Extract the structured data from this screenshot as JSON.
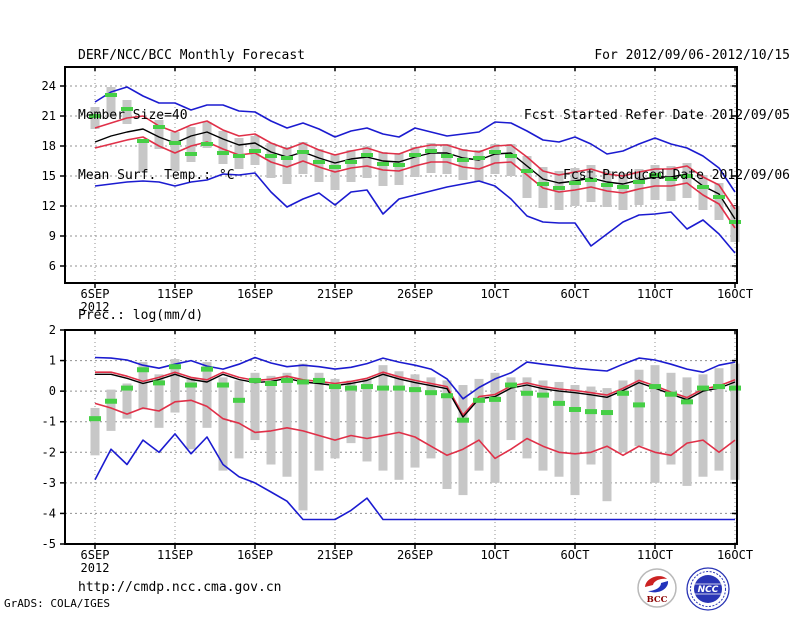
{
  "header": {
    "title": "DERF/NCC/BCC Monthly Forecast",
    "member_size": "Member Size=40",
    "valid_range": "For 2012/09/06-2012/10/15",
    "refer_date": "Fcst Started Refer Date 2012/09/05",
    "produced_date": "Fcst Produced Date 2012/09/06"
  },
  "footer": {
    "url": "http://cmdp.ncc.cma.gov.cn",
    "credit": "GrADS: COLA/IGES"
  },
  "logos": {
    "bcc": "BCC",
    "ncc": "NCC"
  },
  "colors": {
    "blue": "#1b1bd0",
    "red": "#e03048",
    "black": "#000000",
    "green": "#46cf46",
    "box": "#c7c7c7",
    "grid": "#909090",
    "frame": "#000000",
    "bcc_red": "#cc2222",
    "bcc_blue": "#2233bb",
    "ncc_blue": "#2a35b5",
    "bcc_text": "#8b0000"
  },
  "chart_data": [
    {
      "type": "line",
      "name": "surface-temperature",
      "title": "Mean Surf. Temp.: °C",
      "ylabel": "°C",
      "ylim": [
        4.3,
        25.9
      ],
      "yticks": [
        6,
        9,
        12,
        15,
        18,
        21,
        24
      ],
      "grid": true,
      "x_count": 41,
      "xtick_positions": [
        0,
        5,
        10,
        15,
        20,
        25,
        30,
        35,
        40
      ],
      "xtick_labels": [
        "6SEP",
        "11SEP",
        "16SEP",
        "21SEP",
        "26SEP",
        "1OCT",
        "6OCT",
        "11OCT",
        "16OCT"
      ],
      "x_start_year": "2012",
      "series": [
        {
          "name": "ensemble-max",
          "color": "blue",
          "values": [
            22.4,
            23.4,
            23.9,
            23.0,
            22.3,
            22.3,
            21.6,
            22.1,
            22.1,
            21.5,
            21.4,
            20.5,
            19.8,
            20.3,
            19.7,
            18.9,
            19.5,
            19.8,
            19.2,
            18.9,
            19.8,
            19.4,
            19.0,
            19.2,
            19.4,
            20.4,
            20.3,
            19.5,
            18.6,
            18.4,
            18.9,
            18.2,
            17.2,
            17.5,
            18.2,
            18.8,
            18.2,
            17.8,
            17.0,
            15.8,
            13.4
          ]
        },
        {
          "name": "spread-upper",
          "color": "red",
          "values": [
            19.8,
            20.3,
            20.8,
            21.0,
            20.0,
            19.4,
            20.1,
            20.5,
            19.6,
            19.0,
            19.2,
            18.3,
            17.7,
            18.3,
            17.6,
            17.1,
            17.5,
            17.8,
            17.3,
            17.2,
            17.8,
            18.1,
            18.1,
            17.6,
            17.4,
            18.0,
            18.1,
            16.9,
            15.5,
            15.1,
            15.4,
            15.7,
            15.2,
            15.0,
            15.4,
            15.7,
            15.7,
            16.0,
            14.9,
            14.1,
            11.7
          ]
        },
        {
          "name": "ensemble-mean",
          "color": "black",
          "values": [
            18.4,
            19.0,
            19.4,
            19.7,
            18.9,
            18.3,
            19.0,
            19.4,
            18.7,
            18.1,
            18.3,
            17.4,
            16.9,
            17.4,
            16.8,
            16.3,
            16.7,
            16.9,
            16.5,
            16.4,
            16.9,
            17.3,
            17.3,
            16.8,
            16.6,
            17.2,
            17.3,
            16.0,
            14.7,
            14.3,
            14.5,
            14.8,
            14.4,
            14.2,
            14.6,
            14.9,
            14.9,
            15.2,
            14.0,
            13.2,
            10.7
          ]
        },
        {
          "name": "spread-lower",
          "color": "red",
          "values": [
            17.8,
            18.2,
            18.6,
            18.9,
            18.0,
            17.3,
            18.0,
            18.4,
            17.7,
            17.1,
            17.3,
            16.4,
            15.9,
            16.5,
            15.9,
            15.4,
            15.8,
            16.0,
            15.6,
            15.5,
            16.0,
            16.4,
            16.4,
            15.9,
            15.7,
            16.3,
            16.4,
            15.1,
            13.8,
            13.4,
            13.6,
            13.9,
            13.5,
            13.3,
            13.7,
            14.0,
            14.0,
            14.3,
            13.1,
            12.2,
            9.8
          ]
        },
        {
          "name": "ensemble-min",
          "color": "blue",
          "values": [
            14.0,
            14.2,
            14.4,
            14.5,
            14.4,
            14.0,
            14.4,
            14.6,
            15.2,
            15.1,
            15.3,
            13.4,
            11.9,
            12.7,
            13.3,
            12.1,
            13.4,
            13.6,
            11.2,
            12.7,
            13.1,
            13.5,
            13.9,
            14.2,
            14.5,
            14.0,
            12.7,
            11.0,
            10.4,
            10.3,
            10.3,
            8.0,
            9.2,
            10.4,
            11.1,
            11.2,
            11.4,
            9.7,
            10.6,
            9.2,
            7.3
          ]
        }
      ],
      "box_hi": [
        21.9,
        23.9,
        22.6,
        18.6,
        20.6,
        19.4,
        19.9,
        20.4,
        19.5,
        18.8,
        19.0,
        18.3,
        17.9,
        18.4,
        17.7,
        17.2,
        17.6,
        18.0,
        17.4,
        17.3,
        17.9,
        18.3,
        18.2,
        17.7,
        17.6,
        18.2,
        18.2,
        17.0,
        15.9,
        15.5,
        15.8,
        16.1,
        15.5,
        15.3,
        15.7,
        16.1,
        16.0,
        16.3,
        15.1,
        14.3,
        12.0
      ],
      "box_lo": [
        19.7,
        20.9,
        20.2,
        15.4,
        17.7,
        15.5,
        16.4,
        17.8,
        16.2,
        15.7,
        16.1,
        14.8,
        14.2,
        15.2,
        14.4,
        13.6,
        14.4,
        14.8,
        14.0,
        14.1,
        14.9,
        15.3,
        15.2,
        14.6,
        14.4,
        15.2,
        15.0,
        12.8,
        11.8,
        11.6,
        12.0,
        12.4,
        11.9,
        11.6,
        12.1,
        12.6,
        12.5,
        12.8,
        11.6,
        10.6,
        8.4
      ],
      "dashes": {
        "name": "analysis-obs-dash",
        "color": "green",
        "values": [
          21.0,
          23.1,
          21.7,
          18.5,
          19.9,
          18.3,
          17.2,
          18.2,
          17.3,
          17.0,
          17.5,
          17.0,
          16.8,
          17.4,
          16.4,
          15.9,
          16.4,
          17.1,
          16.2,
          16.1,
          17.1,
          17.5,
          17.0,
          16.6,
          16.8,
          17.4,
          17.0,
          15.5,
          14.2,
          13.8,
          14.3,
          14.6,
          14.1,
          13.9,
          14.4,
          15.1,
          14.7,
          15.0,
          13.9,
          12.9,
          10.4
        ]
      }
    },
    {
      "type": "line",
      "name": "precipitation",
      "title": "Prec.: log(mm/d)",
      "ylabel": "log(mm/d)",
      "ylim": [
        -5,
        2
      ],
      "yticks": [
        -5,
        -4,
        -3,
        -2,
        -1,
        0,
        1,
        2
      ],
      "grid": true,
      "x_count": 41,
      "xtick_positions": [
        0,
        5,
        10,
        15,
        20,
        25,
        30,
        35,
        40
      ],
      "xtick_labels": [
        "6SEP",
        "11SEP",
        "16SEP",
        "21SEP",
        "26SEP",
        "1OCT",
        "6OCT",
        "11OCT",
        "16OCT"
      ],
      "x_start_year": "2012",
      "series": [
        {
          "name": "ensemble-max",
          "color": "blue",
          "values": [
            1.1,
            1.08,
            1.02,
            0.85,
            0.75,
            0.88,
            1.0,
            0.82,
            0.72,
            0.88,
            1.1,
            0.92,
            0.8,
            0.85,
            0.8,
            0.72,
            0.78,
            0.9,
            1.08,
            0.95,
            0.85,
            0.72,
            0.4,
            -0.25,
            0.12,
            0.4,
            0.6,
            0.95,
            0.88,
            0.82,
            0.75,
            0.7,
            0.66,
            0.88,
            1.08,
            1.02,
            0.88,
            0.72,
            0.62,
            0.85,
            0.95
          ]
        },
        {
          "name": "spread-upper",
          "color": "red",
          "values": [
            0.62,
            0.62,
            0.49,
            0.32,
            0.45,
            0.62,
            0.45,
            0.37,
            0.62,
            0.45,
            0.35,
            0.39,
            0.49,
            0.37,
            0.32,
            0.25,
            0.32,
            0.42,
            0.62,
            0.47,
            0.35,
            0.25,
            0.15,
            -0.78,
            -0.18,
            -0.11,
            0.17,
            0.27,
            0.15,
            0.07,
            0.02,
            -0.05,
            -0.13,
            0.09,
            0.35,
            0.17,
            -0.03,
            -0.21,
            0.07,
            0.17,
            0.37
          ]
        },
        {
          "name": "ensemble-mean",
          "color": "black",
          "values": [
            0.55,
            0.55,
            0.42,
            0.25,
            0.38,
            0.55,
            0.38,
            0.3,
            0.55,
            0.38,
            0.28,
            0.32,
            0.42,
            0.3,
            0.25,
            0.18,
            0.25,
            0.35,
            0.55,
            0.4,
            0.28,
            0.18,
            0.08,
            -0.85,
            -0.25,
            -0.18,
            0.1,
            0.2,
            0.08,
            0.0,
            -0.05,
            -0.12,
            -0.2,
            0.02,
            0.28,
            0.1,
            -0.1,
            -0.28,
            0.0,
            0.1,
            0.3
          ]
        },
        {
          "name": "spread-lower",
          "color": "red",
          "values": [
            -0.4,
            -0.55,
            -0.75,
            -0.55,
            -0.65,
            -0.35,
            -0.3,
            -0.5,
            -0.9,
            -1.05,
            -1.35,
            -1.3,
            -1.2,
            -1.3,
            -1.45,
            -1.6,
            -1.45,
            -1.55,
            -1.45,
            -1.35,
            -1.5,
            -1.8,
            -2.1,
            -1.9,
            -1.6,
            -2.2,
            -1.9,
            -1.55,
            -1.8,
            -2.0,
            -2.05,
            -2.0,
            -1.8,
            -2.1,
            -1.8,
            -2.0,
            -2.1,
            -1.7,
            -1.6,
            -2.0,
            -1.6
          ]
        },
        {
          "name": "ensemble-min",
          "color": "blue",
          "values": [
            -2.9,
            -1.9,
            -2.4,
            -1.6,
            -2.0,
            -1.4,
            -2.05,
            -1.5,
            -2.4,
            -2.8,
            -3.0,
            -3.3,
            -3.6,
            -4.2,
            -4.2,
            -4.2,
            -3.9,
            -3.5,
            -4.2,
            -4.2,
            -4.2,
            -4.2,
            -4.2,
            -4.2,
            -4.2,
            -4.2,
            -4.2,
            -4.2,
            -4.2,
            -4.2,
            -4.2,
            -4.2,
            -4.2,
            -4.2,
            -4.2,
            -4.2,
            -4.2,
            -4.2,
            -4.2,
            -4.2,
            -4.2
          ]
        }
      ],
      "box_hi": [
        -0.55,
        0.05,
        0.25,
        0.95,
        0.55,
        1.05,
        0.45,
        0.95,
        0.45,
        0.35,
        0.6,
        0.5,
        0.6,
        0.9,
        0.6,
        0.4,
        0.35,
        0.4,
        0.85,
        0.65,
        0.55,
        0.45,
        0.35,
        0.2,
        0.4,
        0.6,
        0.45,
        0.45,
        0.35,
        0.3,
        0.2,
        0.15,
        0.1,
        0.35,
        0.7,
        0.85,
        0.6,
        0.45,
        0.55,
        0.75,
        0.9
      ],
      "box_lo": [
        -2.1,
        -1.3,
        -0.9,
        -0.6,
        -1.2,
        -0.7,
        -1.9,
        -1.2,
        -2.6,
        -2.2,
        -1.6,
        -2.4,
        -2.8,
        -3.9,
        -2.6,
        -2.2,
        -1.7,
        -2.3,
        -2.6,
        -2.9,
        -2.5,
        -2.2,
        -3.2,
        -3.4,
        -2.6,
        -3.0,
        -1.6,
        -2.2,
        -2.6,
        -2.8,
        -3.4,
        -2.4,
        -3.6,
        -2.0,
        -1.8,
        -3.0,
        -2.4,
        -3.1,
        -2.8,
        -2.6,
        -2.9
      ],
      "dashes": {
        "name": "analysis-obs-dash",
        "color": "green",
        "values": [
          -0.9,
          -0.33,
          0.1,
          0.7,
          0.27,
          0.8,
          0.2,
          0.72,
          0.2,
          -0.3,
          0.35,
          0.25,
          0.35,
          0.3,
          0.35,
          0.15,
          0.1,
          0.15,
          0.1,
          0.1,
          0.05,
          -0.05,
          -0.15,
          -0.95,
          -0.3,
          -0.27,
          0.2,
          -0.07,
          -0.13,
          -0.4,
          -0.6,
          -0.67,
          -0.7,
          -0.07,
          -0.45,
          0.15,
          -0.1,
          -0.35,
          0.1,
          0.15,
          0.1
        ]
      }
    }
  ]
}
